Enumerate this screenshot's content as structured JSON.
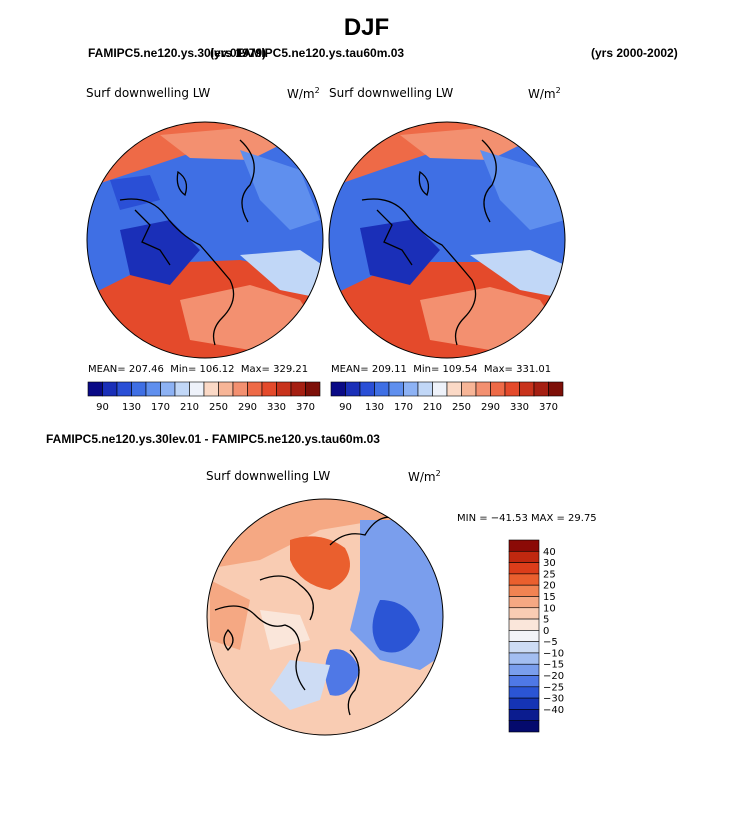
{
  "header": {
    "season": "DJF",
    "case_overlap_left": "FAMIPC5.ne120.ys.30lev.01",
    "case_overlap_right": "FAMIPC5.ne120.ys.tau60m.03",
    "case_overlap_middle": "(yrs 1979)",
    "years": "(yrs 2000-2002)"
  },
  "panels": [
    {
      "id": "left",
      "variable": "Surf downwelling LW",
      "units_base": "W/m",
      "units_exp": "2",
      "stats": {
        "mean_label": "MEAN=",
        "mean": "207.46",
        "min_label": "Min=",
        "min": "106.12",
        "max_label": "Max=",
        "max": "329.21"
      }
    },
    {
      "id": "right",
      "variable": "Surf downwelling LW",
      "units_base": "W/m",
      "units_exp": "2",
      "stats": {
        "mean_label": "MEAN=",
        "mean": "209.11",
        "min_label": "Min=",
        "min": "109.54",
        "max_label": "Max=",
        "max": "331.01"
      }
    }
  ],
  "abs_colorbar": {
    "colors": [
      "#0a0a86",
      "#1a2fb8",
      "#2a4fd6",
      "#3f6fe4",
      "#5f8fee",
      "#8db2f4",
      "#c1d7f7",
      "#eef2fa",
      "#fbd9c6",
      "#f7b597",
      "#f39070",
      "#ee6a47",
      "#e44a2b",
      "#c8331c",
      "#a51f12",
      "#7d0f08"
    ],
    "labels": [
      "90",
      "130",
      "170",
      "210",
      "250",
      "290",
      "330",
      "370"
    ]
  },
  "diff": {
    "title": "FAMIPC5.ne120.ys.30lev.01 - FAMIPC5.ne120.ys.tau60m.03",
    "variable": "Surf downwelling LW",
    "units_base": "W/m",
    "units_exp": "2",
    "minmax": "MIN = −41.53 MAX =  29.75",
    "colorbar": {
      "colors": [
        "#8b0a06",
        "#c0280f",
        "#dc3d1a",
        "#ea5f2e",
        "#f18352",
        "#f5a883",
        "#f9ccb3",
        "#fae6da",
        "#f2f4f8",
        "#cddcf4",
        "#a3bef1",
        "#7a9eed",
        "#4f78e6",
        "#2b55d5",
        "#1534b5",
        "#0b1c8f",
        "#040a6d"
      ],
      "labels": [
        "40",
        "30",
        "25",
        "20",
        "15",
        "10",
        "5",
        "0",
        "−5",
        "−10",
        "−15",
        "−20",
        "−25",
        "−30",
        "−40"
      ]
    }
  }
}
